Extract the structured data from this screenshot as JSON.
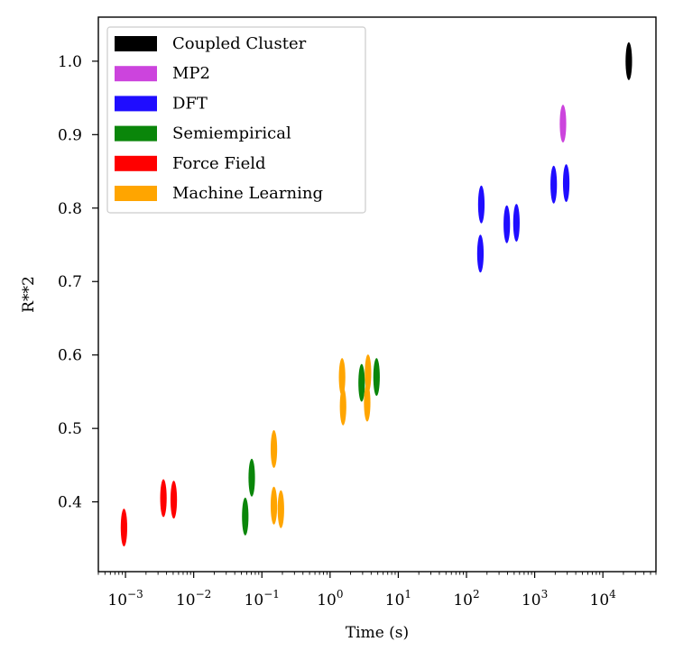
{
  "chart_data": {
    "type": "scatter",
    "xlabel": "Time (s)",
    "ylabel": "R**2",
    "xscale": "log",
    "xlim": [
      0.0004,
      60000
    ],
    "ylim": [
      0.305,
      1.06
    ],
    "x_ticks": [
      {
        "value": 0.001,
        "base": "10",
        "exp": "−3"
      },
      {
        "value": 0.01,
        "base": "10",
        "exp": "−2"
      },
      {
        "value": 0.1,
        "base": "10",
        "exp": "−1"
      },
      {
        "value": 1,
        "base": "10",
        "exp": "0"
      },
      {
        "value": 10,
        "base": "10",
        "exp": "1"
      },
      {
        "value": 100,
        "base": "10",
        "exp": "2"
      },
      {
        "value": 1000,
        "base": "10",
        "exp": "3"
      },
      {
        "value": 10000,
        "base": "10",
        "exp": "4"
      }
    ],
    "y_ticks": [
      {
        "value": 0.4,
        "label": "0.4"
      },
      {
        "value": 0.5,
        "label": "0.5"
      },
      {
        "value": 0.6,
        "label": "0.6"
      },
      {
        "value": 0.7,
        "label": "0.7"
      },
      {
        "value": 0.8,
        "label": "0.8"
      },
      {
        "value": 0.9,
        "label": "0.9"
      },
      {
        "value": 1.0,
        "label": "1.0"
      }
    ],
    "grid": false,
    "legend_position": "top-left",
    "series": [
      {
        "name": "Coupled Cluster",
        "color": "#000000",
        "points": [
          {
            "x": 24000,
            "y": 1.0
          }
        ]
      },
      {
        "name": "MP2",
        "color": "#cc44dd",
        "points": [
          {
            "x": 2600,
            "y": 0.915
          }
        ]
      },
      {
        "name": "DFT",
        "color": "#1f0dff",
        "points": [
          {
            "x": 165,
            "y": 0.805
          },
          {
            "x": 160,
            "y": 0.738
          },
          {
            "x": 390,
            "y": 0.778
          },
          {
            "x": 540,
            "y": 0.78
          },
          {
            "x": 1900,
            "y": 0.832
          },
          {
            "x": 2900,
            "y": 0.834
          }
        ]
      },
      {
        "name": "Semiempirical",
        "color": "#0a860a",
        "points": [
          {
            "x": 0.057,
            "y": 0.38
          },
          {
            "x": 0.071,
            "y": 0.433
          },
          {
            "x": 2.9,
            "y": 0.562
          },
          {
            "x": 4.8,
            "y": 0.57
          }
        ]
      },
      {
        "name": "Force Field",
        "color": "#ff0000",
        "points": [
          {
            "x": 0.00095,
            "y": 0.365
          },
          {
            "x": 0.0036,
            "y": 0.405
          },
          {
            "x": 0.0051,
            "y": 0.403
          }
        ]
      },
      {
        "name": "Machine Learning",
        "color": "#ffa500",
        "points": [
          {
            "x": 0.15,
            "y": 0.472
          },
          {
            "x": 0.15,
            "y": 0.395
          },
          {
            "x": 0.19,
            "y": 0.39
          },
          {
            "x": 1.5,
            "y": 0.57
          },
          {
            "x": 1.55,
            "y": 0.53
          },
          {
            "x": 3.6,
            "y": 0.575
          },
          {
            "x": 3.5,
            "y": 0.535
          }
        ]
      }
    ]
  }
}
